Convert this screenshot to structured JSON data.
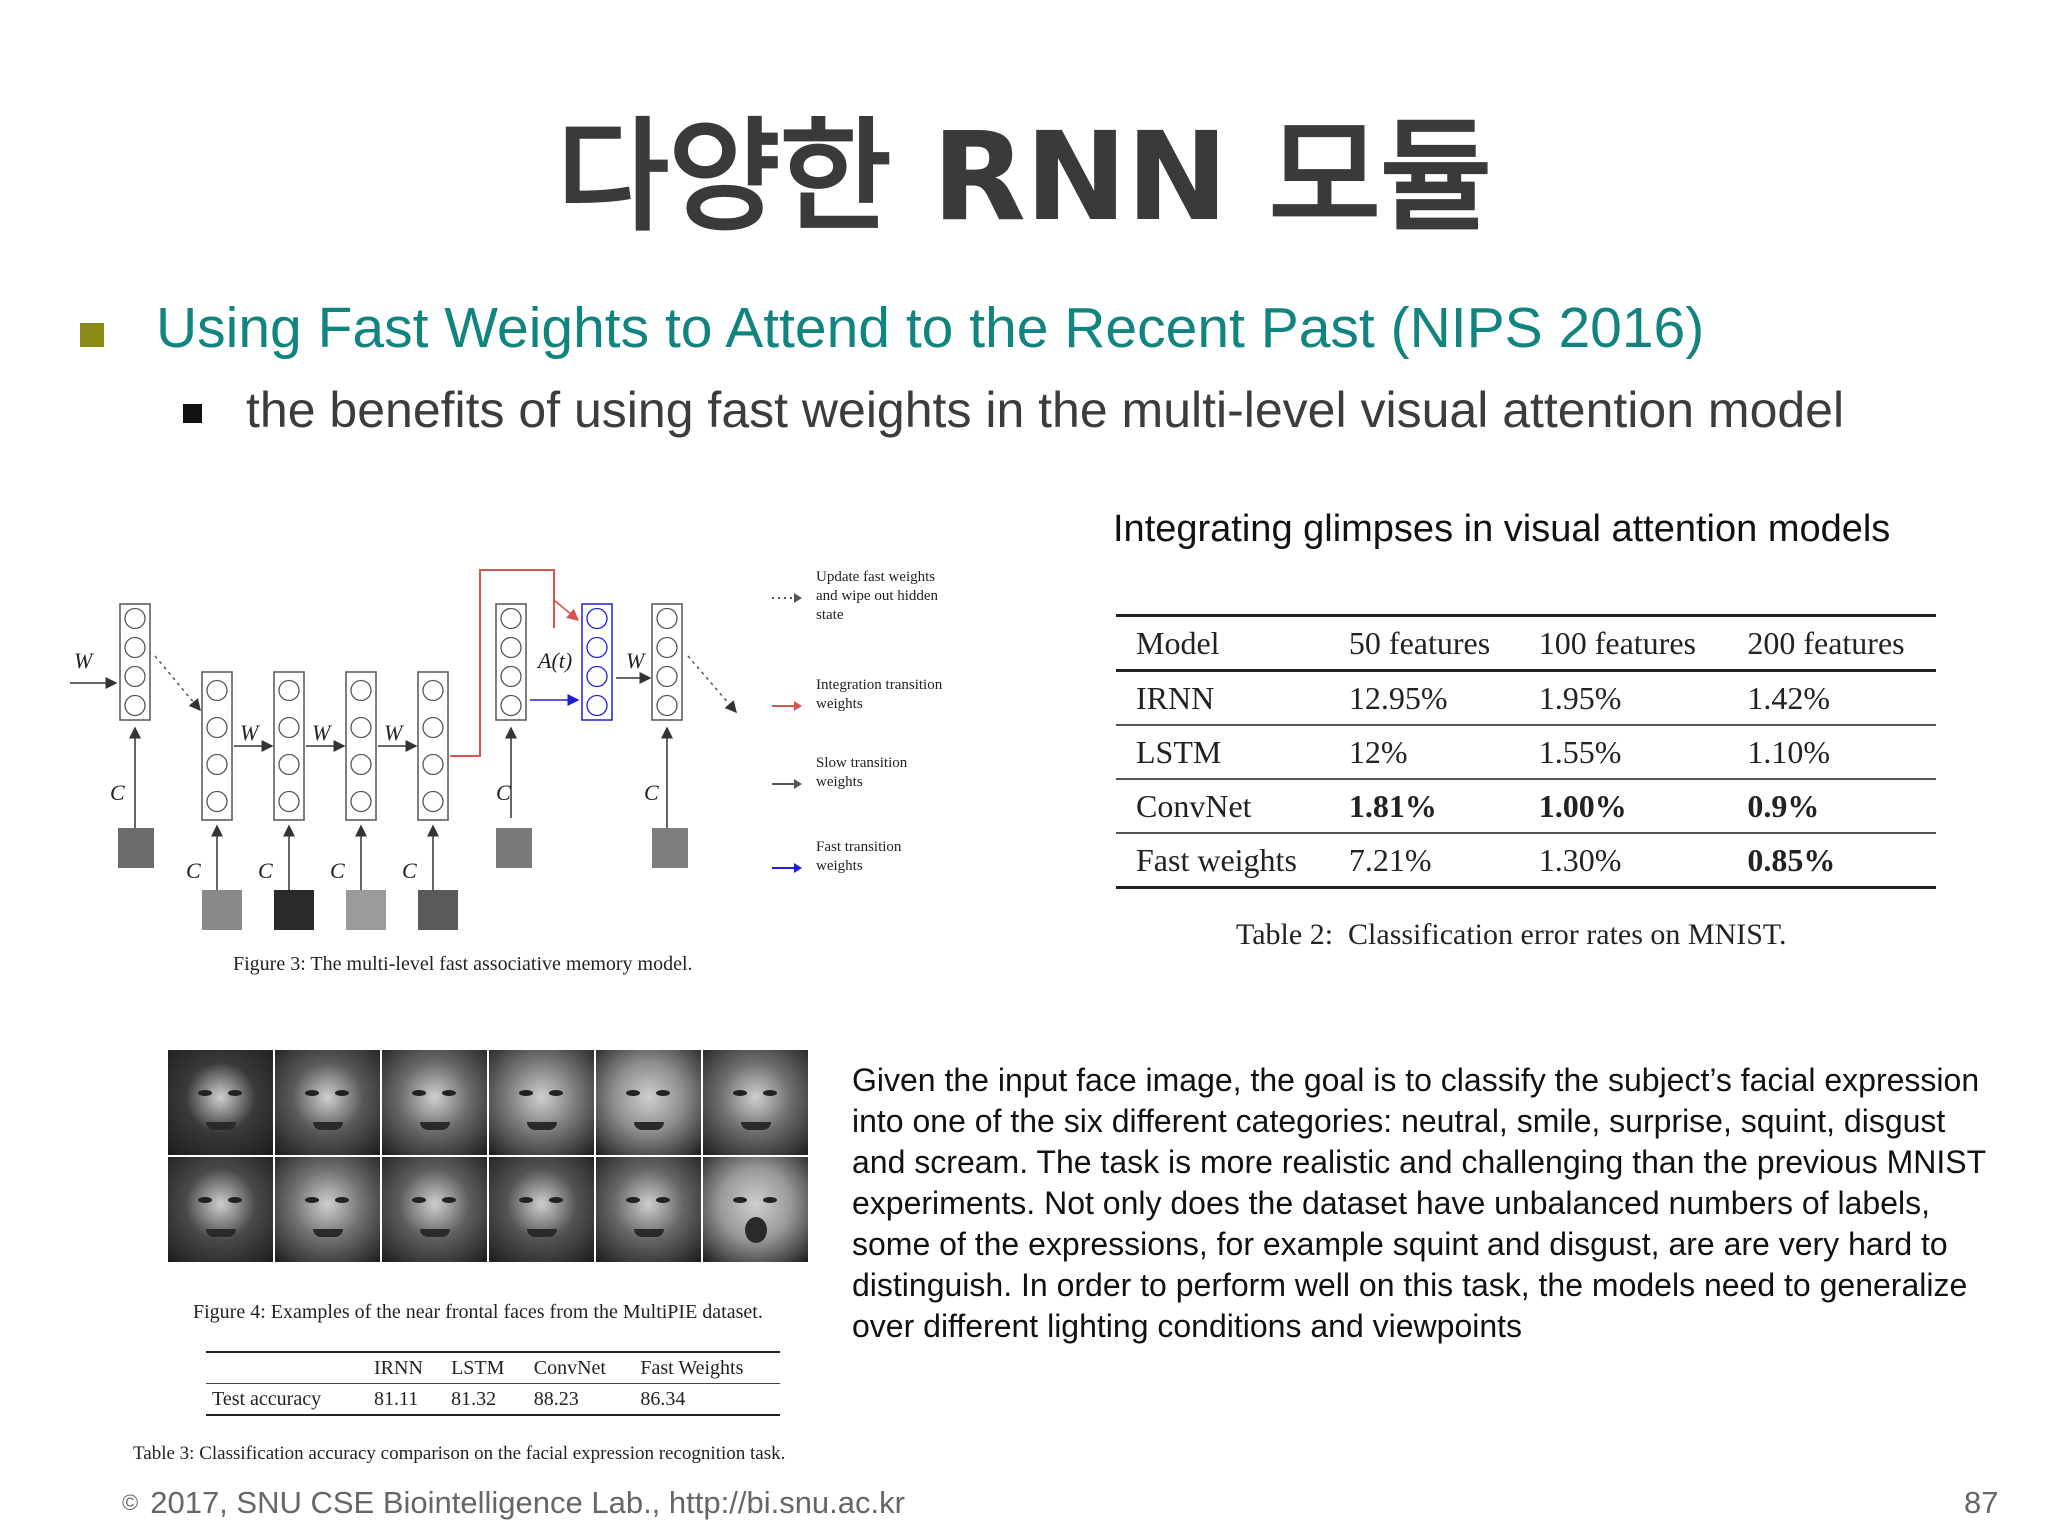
{
  "slide": {
    "title": "다양한 RNN 모듈",
    "bullet1": "Using Fast Weights to Attend to the Recent Past (NIPS 2016)",
    "bullet2": "the benefits of using fast weights in the multi-level visual attention model",
    "right_caption": "Integrating glimpses in visual attention models",
    "colors": {
      "accent_teal": "#12847f",
      "bullet_olive": "#8a8a16",
      "red_arrow": "#d9534f",
      "blue_arrow": "#1f1fd6"
    }
  },
  "figure3": {
    "labels": {
      "w": "W",
      "c": "C",
      "at": "A(t)"
    },
    "legend": [
      {
        "text": "Update fast weights and wipe out hidden state",
        "arrow": "dotted"
      },
      {
        "text": "Integration transition weights",
        "arrow": "red"
      },
      {
        "text": "Slow transition weights",
        "arrow": "gray"
      },
      {
        "text": "Fast transition weights",
        "arrow": "blue"
      }
    ],
    "caption_label": "Figure 3:",
    "caption_text": "The multi-level fast associative memory model."
  },
  "table2": {
    "headers": [
      "Model",
      "50 features",
      "100 features",
      "200 features"
    ],
    "rows": [
      {
        "cells": [
          "IRNN",
          "12.95%",
          "1.95%",
          "1.42%"
        ],
        "bold": [
          false,
          false,
          false,
          false
        ]
      },
      {
        "cells": [
          "LSTM",
          "12%",
          "1.55%",
          "1.10%"
        ],
        "bold": [
          false,
          false,
          false,
          false
        ]
      },
      {
        "cells": [
          "ConvNet",
          "1.81%",
          "1.00%",
          "0.9%"
        ],
        "bold": [
          false,
          true,
          true,
          true
        ]
      },
      {
        "cells": [
          "Fast weights",
          "7.21%",
          "1.30%",
          "0.85%"
        ],
        "bold": [
          false,
          false,
          false,
          true
        ]
      }
    ],
    "caption_label": "Table 2:",
    "caption_text": "Classification error rates on MNIST."
  },
  "figure4": {
    "caption_label": "Figure 4:",
    "caption_text": "Examples of the near frontal faces from the MultiPIE dataset."
  },
  "table3": {
    "headers": [
      "",
      "IRNN",
      "LSTM",
      "ConvNet",
      "Fast Weights"
    ],
    "row": [
      "Test accuracy",
      "81.11",
      "81.32",
      "88.23",
      "86.34"
    ],
    "caption_label": "Table 3:",
    "caption_text": "Classification accuracy comparison on the facial expression recognition task."
  },
  "paragraph": "Given the input face image, the goal is to classify the subject’s facial expression into one of the six different categories: neutral, smile, surprise, squint, disgust and scream. The task is more realistic and challenging than the previous MNIST experiments. Not only does the dataset have unbalanced numbers of labels, some of the expressions, for example squint and disgust, are are very hard to distinguish. In order to perform well on this task, the models need to generalize over different lighting conditions and viewpoints",
  "footer": {
    "copyright_symbol": "©",
    "text": "2017, SNU CSE Biointelligence Lab., http://bi.snu.ac.kr",
    "page_number": "87"
  }
}
